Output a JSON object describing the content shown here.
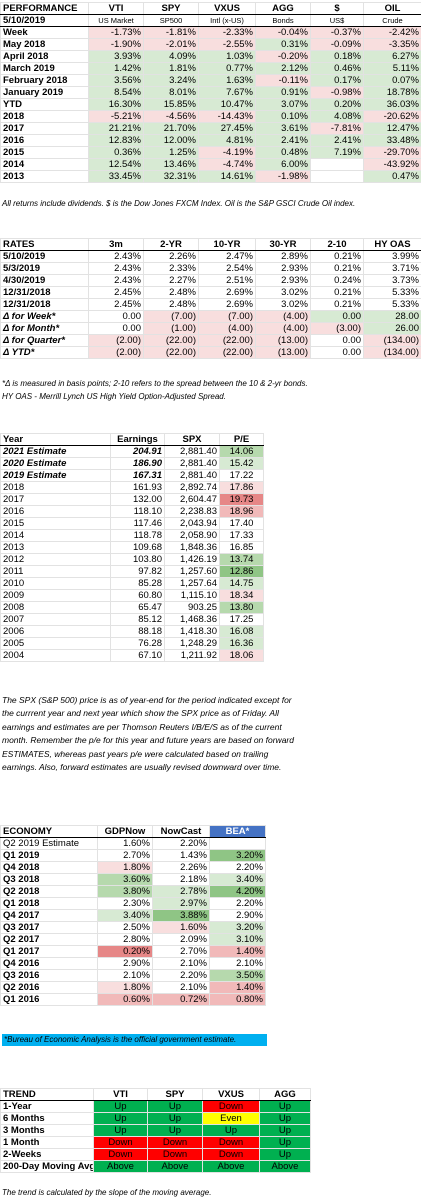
{
  "performance": {
    "header": [
      "PERFORMANCE",
      "VTI",
      "SPY",
      "VXUS",
      "AGG",
      "$",
      "OIL"
    ],
    "sub": [
      "5/10/2019",
      "US Market",
      "SP500",
      "Intl (x-US)",
      "Bonds",
      "US$",
      "Crude"
    ],
    "rows": [
      {
        "label": "Week",
        "values": [
          "-1.73%",
          "-1.81%",
          "-2.33%",
          "-0.04%",
          "-0.37%",
          "-2.42%"
        ],
        "tones": [
          "neg1",
          "neg1",
          "neg1",
          "neg1",
          "neg1",
          "neg1"
        ]
      },
      {
        "label": "May 2018",
        "values": [
          "-1.90%",
          "-2.01%",
          "-2.55%",
          "0.31%",
          "-0.09%",
          "-3.35%"
        ],
        "tones": [
          "neg1",
          "neg1",
          "neg1",
          "pos1",
          "neg1",
          "neg1"
        ]
      },
      {
        "label": "April 2018",
        "values": [
          "3.93%",
          "4.09%",
          "1.03%",
          "-0.20%",
          "0.18%",
          "6.27%"
        ],
        "tones": [
          "pos1",
          "pos1",
          "pos1",
          "neg1",
          "pos1",
          "pos1"
        ]
      },
      {
        "label": "March 2019",
        "values": [
          "1.42%",
          "1.81%",
          "0.77%",
          "2.12%",
          "0.46%",
          "5.11%"
        ],
        "tones": [
          "pos1",
          "pos1",
          "pos1",
          "pos1",
          "pos1",
          "pos1"
        ]
      },
      {
        "label": "February 2018",
        "values": [
          "3.56%",
          "3.24%",
          "1.63%",
          "-0.11%",
          "0.17%",
          "0.07%"
        ],
        "tones": [
          "pos1",
          "pos1",
          "pos1",
          "neg1",
          "pos1",
          "pos1"
        ]
      },
      {
        "label": "January 2019",
        "values": [
          "8.54%",
          "8.01%",
          "7.67%",
          "0.91%",
          "-0.98%",
          "18.78%"
        ],
        "tones": [
          "pos1",
          "pos1",
          "pos1",
          "pos1",
          "neg1",
          "pos1"
        ]
      },
      {
        "label": "YTD",
        "values": [
          "16.30%",
          "15.85%",
          "10.47%",
          "3.07%",
          "0.20%",
          "36.03%"
        ],
        "tones": [
          "pos1",
          "pos1",
          "pos1",
          "pos1",
          "pos1",
          "pos1"
        ]
      },
      {
        "label": "2018",
        "values": [
          "-5.21%",
          "-4.56%",
          "-14.43%",
          "0.10%",
          "4.08%",
          "-20.62%"
        ],
        "tones": [
          "neg1",
          "neg1",
          "neg1",
          "pos1",
          "pos1",
          "neg1"
        ]
      },
      {
        "label": "2017",
        "values": [
          "21.21%",
          "21.70%",
          "27.45%",
          "3.61%",
          "-7.81%",
          "12.47%"
        ],
        "tones": [
          "pos1",
          "pos1",
          "pos1",
          "pos1",
          "neg1",
          "pos1"
        ]
      },
      {
        "label": "2016",
        "values": [
          "12.83%",
          "12.00%",
          "4.81%",
          "2.41%",
          "2.41%",
          "33.48%"
        ],
        "tones": [
          "pos1",
          "pos1",
          "pos1",
          "pos1",
          "pos1",
          "pos1"
        ]
      },
      {
        "label": "2015",
        "values": [
          "0.36%",
          "1.25%",
          "-4.19%",
          "0.48%",
          "7.19%",
          "-29.70%"
        ],
        "tones": [
          "pos1",
          "pos1",
          "neg1",
          "pos1",
          "pos1",
          "neg1"
        ]
      },
      {
        "label": "2014",
        "values": [
          "12.54%",
          "13.46%",
          "-4.74%",
          "6.00%",
          "",
          "-43.92%"
        ],
        "tones": [
          "pos1",
          "pos1",
          "neg1",
          "pos1",
          "",
          "neg1"
        ]
      },
      {
        "label": "2013",
        "values": [
          "33.45%",
          "32.31%",
          "14.61%",
          "-1.98%",
          "",
          "0.47%"
        ],
        "tones": [
          "pos1",
          "pos1",
          "pos1",
          "neg1",
          "",
          "pos1"
        ]
      }
    ],
    "note": "All returns include dividends. $ is the Dow Jones FXCM Index. Oil is the S&P GSCI Crude Oil index."
  },
  "rates": {
    "header": [
      "RATES",
      "3m",
      "2-YR",
      "10-YR",
      "30-YR",
      "2-10",
      "HY OAS"
    ],
    "rows": [
      {
        "label": "5/10/2019",
        "values": [
          "2.43%",
          "2.26%",
          "2.47%",
          "2.89%",
          "0.21%",
          "3.99%"
        ],
        "tones": [
          "",
          "",
          "",
          "",
          "",
          ""
        ]
      },
      {
        "label": "5/3/2019",
        "values": [
          "2.43%",
          "2.33%",
          "2.54%",
          "2.93%",
          "0.21%",
          "3.71%"
        ],
        "tones": [
          "",
          "",
          "",
          "",
          "",
          ""
        ]
      },
      {
        "label": "4/30/2019",
        "values": [
          "2.43%",
          "2.27%",
          "2.51%",
          "2.93%",
          "0.24%",
          "3.73%"
        ],
        "tones": [
          "",
          "",
          "",
          "",
          "",
          ""
        ]
      },
      {
        "label": "12/31/2018",
        "values": [
          "2.45%",
          "2.48%",
          "2.69%",
          "3.02%",
          "0.21%",
          "5.33%"
        ],
        "tones": [
          "",
          "",
          "",
          "",
          "",
          ""
        ]
      },
      {
        "label": "12/31/2018",
        "values": [
          "2.45%",
          "2.48%",
          "2.69%",
          "3.02%",
          "0.21%",
          "5.33%"
        ],
        "tones": [
          "",
          "",
          "",
          "",
          "",
          ""
        ]
      },
      {
        "label": "Δ for Week*",
        "values": [
          "0.00",
          "(7.00)",
          "(7.00)",
          "(4.00)",
          "0.00",
          "28.00"
        ],
        "tones": [
          "",
          "neg1",
          "neg1",
          "neg1",
          "pos1",
          "pos1"
        ]
      },
      {
        "label": "Δ for Month*",
        "values": [
          "0.00",
          "(1.00)",
          "(4.00)",
          "(4.00)",
          "(3.00)",
          "26.00"
        ],
        "tones": [
          "",
          "neg1",
          "neg1",
          "neg1",
          "neg1",
          "pos1"
        ]
      },
      {
        "label": "Δ for Quarter*",
        "values": [
          "(2.00)",
          "(22.00)",
          "(22.00)",
          "(13.00)",
          "0.00",
          "(134.00)"
        ],
        "tones": [
          "neg1",
          "neg1",
          "neg1",
          "neg1",
          "",
          "neg1"
        ]
      },
      {
        "label": "Δ YTD*",
        "values": [
          "(2.00)",
          "(22.00)",
          "(22.00)",
          "(13.00)",
          "0.00",
          "(134.00)"
        ],
        "tones": [
          "neg1",
          "neg1",
          "neg1",
          "neg1",
          "",
          "neg1"
        ]
      }
    ],
    "note1": "*Δ is measured in basis points; 2-10 refers to the spread between the 10 & 2-yr bonds.",
    "note2": "HY OAS - Merrill Lynch US High Yield Option-Adjusted Spread."
  },
  "earnings": {
    "header": [
      "Year",
      "Earnings",
      "SPX",
      "P/E"
    ],
    "rows": [
      {
        "year": "2021 Estimate",
        "earnings": "204.91",
        "spx": "2,881.40",
        "pe": "14.06",
        "tone": "pos2",
        "italic": true
      },
      {
        "year": "2020 Estimate",
        "earnings": "186.90",
        "spx": "2,881.40",
        "pe": "15.42",
        "tone": "pos1",
        "italic": true
      },
      {
        "year": "2019 Estimate",
        "earnings": "167.31",
        "spx": "2,881.40",
        "pe": "17.22",
        "tone": "",
        "italic": true
      },
      {
        "year": "2018",
        "earnings": "161.93",
        "spx": "2,892.74",
        "pe": "17.86",
        "tone": "neg1",
        "italic": false
      },
      {
        "year": "2017",
        "earnings": "132.00",
        "spx": "2,604.47",
        "pe": "19.73",
        "tone": "neg3",
        "italic": false
      },
      {
        "year": "2016",
        "earnings": "118.10",
        "spx": "2,238.83",
        "pe": "18.96",
        "tone": "neg2",
        "italic": false
      },
      {
        "year": "2015",
        "earnings": "117.46",
        "spx": "2,043.94",
        "pe": "17.40",
        "tone": "",
        "italic": false
      },
      {
        "year": "2014",
        "earnings": "118.78",
        "spx": "2,058.90",
        "pe": "17.33",
        "tone": "",
        "italic": false
      },
      {
        "year": "2013",
        "earnings": "109.68",
        "spx": "1,848.36",
        "pe": "16.85",
        "tone": "",
        "italic": false
      },
      {
        "year": "2012",
        "earnings": "103.80",
        "spx": "1,426.19",
        "pe": "13.74",
        "tone": "pos2",
        "italic": false
      },
      {
        "year": "2011",
        "earnings": "97.82",
        "spx": "1,257.60",
        "pe": "12.86",
        "tone": "pos3",
        "italic": false
      },
      {
        "year": "2010",
        "earnings": "85.28",
        "spx": "1,257.64",
        "pe": "14.75",
        "tone": "pos1",
        "italic": false
      },
      {
        "year": "2009",
        "earnings": "60.80",
        "spx": "1,115.10",
        "pe": "18.34",
        "tone": "neg1",
        "italic": false
      },
      {
        "year": "2008",
        "earnings": "65.47",
        "spx": "903.25",
        "pe": "13.80",
        "tone": "pos2",
        "italic": false
      },
      {
        "year": "2007",
        "earnings": "85.12",
        "spx": "1,468.36",
        "pe": "17.25",
        "tone": "",
        "italic": false
      },
      {
        "year": "2006",
        "earnings": "88.18",
        "spx": "1,418.30",
        "pe": "16.08",
        "tone": "pos1",
        "italic": false
      },
      {
        "year": "2005",
        "earnings": "76.28",
        "spx": "1,248.29",
        "pe": "16.36",
        "tone": "pos1",
        "italic": false
      },
      {
        "year": "2004",
        "earnings": "67.10",
        "spx": "1,211.92",
        "pe": "18.06",
        "tone": "neg1",
        "italic": false
      }
    ],
    "note": "The SPX (S&P 500) price is as of year-end for the period indicated except for the currrent year and next year which show the SPX price as of Friday. All earnings and estimates are per Thomson Reuters I/B/E/S as of the current month. Remember the p/e for this year and future years are based on forward ESTIMATES, whereas past years p/e were calculated based on trailing earnings. Also, forward estimates are usually revised downward over time."
  },
  "economy": {
    "header": [
      "ECONOMY",
      "GDPNow",
      "NowCast",
      "BEA*"
    ],
    "rows": [
      {
        "label": "Q2 2019 Estimate",
        "values": [
          "1.60%",
          "2.20%",
          ""
        ],
        "tones": [
          "",
          "",
          ""
        ],
        "plain": true
      },
      {
        "label": "Q1 2019",
        "values": [
          "2.70%",
          "1.43%",
          "3.20%"
        ],
        "tones": [
          "",
          "",
          "pos3"
        ]
      },
      {
        "label": "Q4 2018",
        "values": [
          "1.80%",
          "2.26%",
          "2.20%"
        ],
        "tones": [
          "neg1",
          "",
          ""
        ]
      },
      {
        "label": "Q3 2018",
        "values": [
          "3.60%",
          "2.18%",
          "3.40%"
        ],
        "tones": [
          "pos2",
          "",
          "pos1"
        ]
      },
      {
        "label": "Q2 2018",
        "values": [
          "3.80%",
          "2.78%",
          "4.20%"
        ],
        "tones": [
          "pos2",
          "pos1",
          "pos3"
        ]
      },
      {
        "label": "Q1 2018",
        "values": [
          "2.30%",
          "2.97%",
          "2.20%"
        ],
        "tones": [
          "",
          "pos1",
          ""
        ]
      },
      {
        "label": "Q4 2017",
        "values": [
          "3.40%",
          "3.88%",
          "2.90%"
        ],
        "tones": [
          "pos1",
          "pos3",
          ""
        ]
      },
      {
        "label": "Q3 2017",
        "values": [
          "2.50%",
          "1.60%",
          "3.20%"
        ],
        "tones": [
          "",
          "neg1",
          "pos1"
        ]
      },
      {
        "label": "Q2 2017",
        "values": [
          "2.80%",
          "2.09%",
          "3.10%"
        ],
        "tones": [
          "",
          "",
          "pos1"
        ]
      },
      {
        "label": "Q1 2017",
        "values": [
          "0.20%",
          "2.70%",
          "1.40%"
        ],
        "tones": [
          "neg3",
          "",
          "neg2"
        ]
      },
      {
        "label": "Q4 2016",
        "values": [
          "2.90%",
          "2.10%",
          "2.10%"
        ],
        "tones": [
          "",
          "",
          ""
        ]
      },
      {
        "label": "Q3 2016",
        "values": [
          "2.10%",
          "2.20%",
          "3.50%"
        ],
        "tones": [
          "",
          "",
          "pos2"
        ]
      },
      {
        "label": "Q2 2016",
        "values": [
          "1.80%",
          "2.10%",
          "1.40%"
        ],
        "tones": [
          "neg1",
          "",
          "neg2"
        ]
      },
      {
        "label": "Q1 2016",
        "values": [
          "0.60%",
          "0.72%",
          "0.80%"
        ],
        "tones": [
          "neg2",
          "neg2",
          "neg2"
        ]
      }
    ],
    "note": "*Bureau of Economic Analysis is the official government estimate."
  },
  "trend": {
    "header": [
      "TREND",
      "VTI",
      "SPY",
      "VXUS",
      "AGG"
    ],
    "rows": [
      {
        "label": "1-Year",
        "values": [
          "Up",
          "Up",
          "Down",
          "Up"
        ]
      },
      {
        "label": "6 Months",
        "values": [
          "Up",
          "Up",
          "Even",
          "Up"
        ]
      },
      {
        "label": "3 Months",
        "values": [
          "Up",
          "Up",
          "Up",
          "Up"
        ]
      },
      {
        "label": "1 Month",
        "values": [
          "Down",
          "Down",
          "Down",
          "Up"
        ]
      },
      {
        "label": "2-Weeks",
        "values": [
          "Down",
          "Down",
          "Down",
          "Up"
        ]
      },
      {
        "label": "200-Day Moving Avg",
        "values": [
          "Above",
          "Above",
          "Above",
          "Above"
        ]
      }
    ],
    "note": "The trend is calculated by the slope of the moving average."
  },
  "colors": {
    "up": "#00b050",
    "down": "#ff0000",
    "even": "#ffff00",
    "bea_header": "#4472c4",
    "bea_note": "#00b0f0",
    "positive": "#d7ead3",
    "negative": "#f8dede"
  }
}
